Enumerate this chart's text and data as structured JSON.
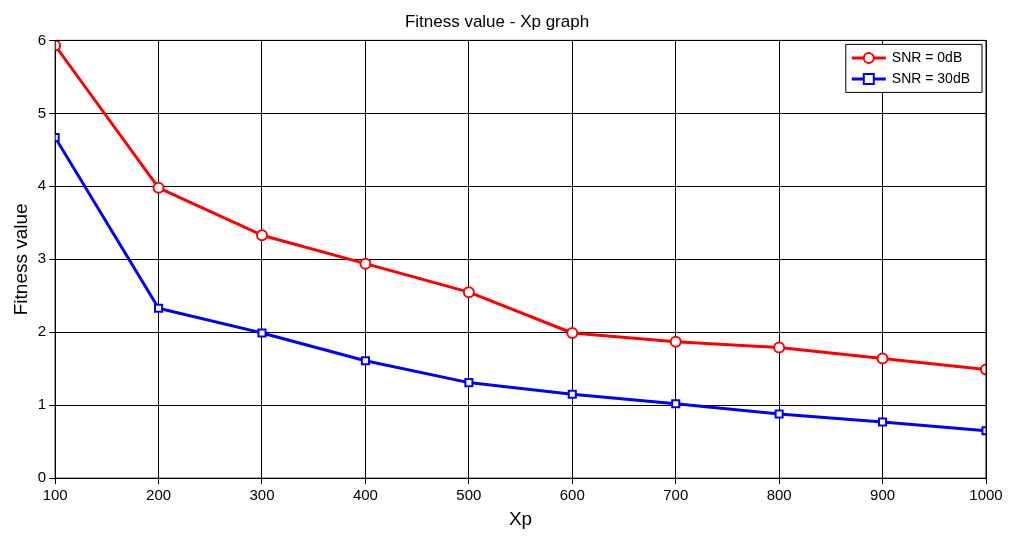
{
  "chart_data": {
    "type": "line",
    "title": "Fitness value - Xp graph",
    "xlabel": "Xp",
    "ylabel": "Fitness value",
    "x": [
      100,
      200,
      300,
      400,
      500,
      600,
      700,
      800,
      900,
      1000
    ],
    "series": [
      {
        "name": "SNR = 0dB",
        "color": "#ff0000",
        "marker": "circle",
        "values": [
          5.93,
          3.98,
          3.33,
          2.94,
          2.55,
          1.99,
          1.87,
          1.79,
          1.64,
          1.49
        ]
      },
      {
        "name": "SNR = 30dB",
        "color": "#0000ff",
        "marker": "square",
        "values": [
          4.67,
          2.33,
          1.99,
          1.61,
          1.31,
          1.15,
          1.02,
          0.88,
          0.77,
          0.65
        ]
      }
    ],
    "xlim": [
      100,
      1000
    ],
    "xticks": [
      100,
      200,
      300,
      400,
      500,
      600,
      700,
      800,
      900,
      1000
    ],
    "ylim": [
      0,
      6
    ],
    "yticks": [
      0,
      1,
      2,
      3,
      4,
      5,
      6
    ],
    "grid": true,
    "legend": "top right",
    "line_style": "solid"
  }
}
